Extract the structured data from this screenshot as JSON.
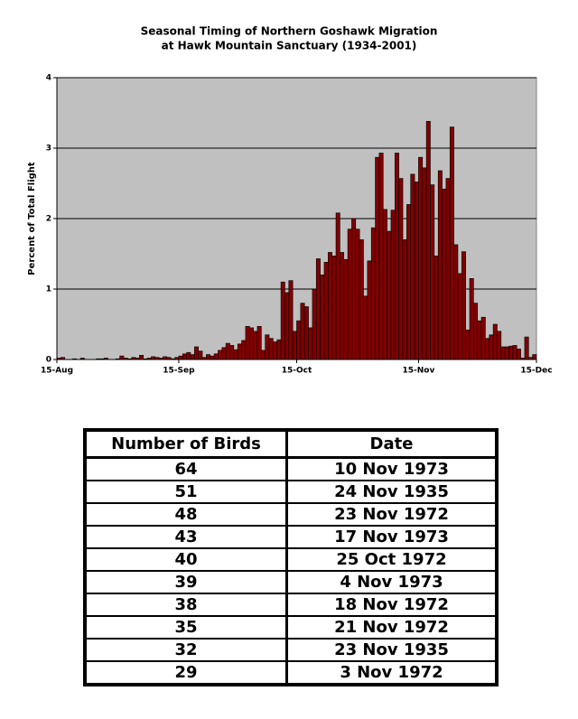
{
  "chart_data": {
    "type": "histogram",
    "title": [
      "Seasonal Timing of Northern Goshawk Migration",
      "at Hawk Mountain Sanctuary (1934-2001)"
    ],
    "y_label": "Percent of Total Flight",
    "color": "#800000",
    "bins": [
      0,
      1,
      2,
      3,
      4,
      5,
      6,
      7,
      8,
      9,
      10,
      11,
      12,
      13,
      14,
      15,
      16,
      17,
      18,
      19,
      20,
      21,
      22,
      23,
      24,
      25,
      26,
      27,
      28,
      29,
      30,
      31,
      32,
      33,
      34,
      35,
      36,
      37,
      38,
      39,
      40,
      41,
      42,
      43,
      44,
      45,
      46,
      47,
      48,
      49,
      50,
      51,
      52,
      53,
      54,
      55,
      56,
      57,
      58,
      59,
      60,
      61,
      62,
      63,
      64,
      65,
      66,
      67,
      68,
      69,
      70,
      71,
      72,
      73,
      74,
      75,
      76,
      77,
      78,
      79,
      80,
      81,
      82,
      83,
      84,
      85,
      86,
      87,
      88,
      89,
      90,
      91,
      92,
      93,
      94,
      95,
      96,
      97,
      98,
      99,
      100,
      101,
      102,
      103,
      104,
      105,
      106,
      107,
      108,
      109,
      110,
      111,
      112,
      113,
      114,
      115,
      116,
      117,
      118,
      119,
      120,
      121,
      122
    ],
    "values": [
      0.02,
      0.03,
      0,
      0,
      0.01,
      0,
      0.02,
      0,
      0,
      0,
      0.01,
      0.01,
      0.02,
      0,
      0,
      0.01,
      0.05,
      0.02,
      0.01,
      0.03,
      0.02,
      0.06,
      0.01,
      0.02,
      0.04,
      0.03,
      0.02,
      0.04,
      0.03,
      0.01,
      0.03,
      0.05,
      0.08,
      0.1,
      0.07,
      0.18,
      0.12,
      0.03,
      0.07,
      0.05,
      0.08,
      0.13,
      0.17,
      0.23,
      0.2,
      0.14,
      0.22,
      0.27,
      0.47,
      0.45,
      0.4,
      0.47,
      0.13,
      0.35,
      0.3,
      0.25,
      0.28,
      1.1,
      0.95,
      1.12,
      0.4,
      0.55,
      0.8,
      0.75,
      0.45,
      1.0,
      1.43,
      1.2,
      1.38,
      1.52,
      1.47,
      2.08,
      1.52,
      1.42,
      1.85,
      2.0,
      1.85,
      1.7,
      0.9,
      1.4,
      1.87,
      2.87,
      2.93,
      2.13,
      1.82,
      2.12,
      2.93,
      2.57,
      1.7,
      2.2,
      2.63,
      2.52,
      2.87,
      2.72,
      3.38,
      2.48,
      1.47,
      2.68,
      2.42,
      2.57,
      3.3,
      1.63,
      1.22,
      1.53,
      0.42,
      1.15,
      0.8,
      0.55,
      0.6,
      0.3,
      0.35,
      0.5,
      0.4,
      0.18,
      0.18,
      0.19,
      0.2,
      0.15,
      0.02,
      0.32,
      0.03,
      0.07
    ],
    "xlim": [
      0,
      122
    ],
    "xticks": [
      {
        "value": 0,
        "label": "15-Aug"
      },
      {
        "value": 31,
        "label": "15-Sep"
      },
      {
        "value": 61,
        "label": "15-Oct"
      },
      {
        "value": 92,
        "label": "15-Nov"
      },
      {
        "value": 122,
        "label": "15-Dec"
      }
    ],
    "ylim": [
      0,
      4
    ],
    "yticks": [
      0,
      1,
      2,
      3,
      4
    ],
    "grid": true
  },
  "table": {
    "columns": [
      "Number of Birds",
      "Date"
    ],
    "rows": [
      [
        64,
        "10 Nov 1973"
      ],
      [
        51,
        "24 Nov 1935"
      ],
      [
        48,
        "23 Nov 1972"
      ],
      [
        43,
        "17 Nov 1973"
      ],
      [
        40,
        "25 Oct 1972"
      ],
      [
        39,
        "4 Nov 1973"
      ],
      [
        38,
        "18 Nov 1972"
      ],
      [
        35,
        "21 Nov 1972"
      ],
      [
        32,
        "23 Nov 1935"
      ],
      [
        29,
        "3 Nov 1972"
      ]
    ]
  }
}
